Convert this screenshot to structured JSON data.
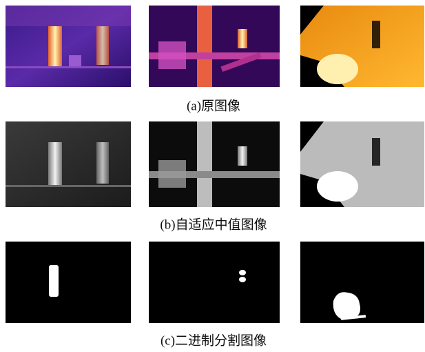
{
  "rows": [
    {
      "caption": "(a)原图像"
    },
    {
      "caption": "(b)自适应中值图像"
    },
    {
      "caption": "(c)二进制分割图像"
    }
  ]
}
